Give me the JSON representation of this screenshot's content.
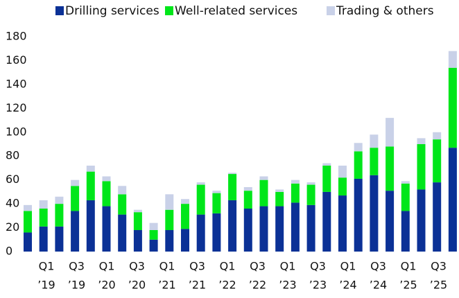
{
  "chart_data": {
    "type": "stacked_bar",
    "categories": [
      [
        "Q1",
        "’19"
      ],
      null,
      [
        "Q3",
        "’19"
      ],
      null,
      [
        "Q1",
        "’20"
      ],
      null,
      [
        "Q3",
        "’20"
      ],
      null,
      [
        "Q1",
        "’21"
      ],
      null,
      [
        "Q3",
        "’21"
      ],
      null,
      [
        "Q1",
        "’22"
      ],
      null,
      [
        "Q3",
        "’22"
      ],
      null,
      [
        "Q1",
        "’23"
      ],
      null,
      [
        "Q3",
        "’23"
      ],
      null,
      [
        "Q1",
        "’24"
      ],
      null,
      [
        "Q3",
        "’24"
      ],
      null,
      [
        "Q1",
        "’25"
      ],
      null,
      [
        "Q3",
        "’25"
      ],
      null
    ],
    "series": [
      {
        "name": "Drilling services",
        "color": "#0b3196",
        "values": [
          16,
          21,
          21,
          34,
          43,
          38,
          31,
          18,
          10,
          18,
          19,
          31,
          32,
          43,
          36,
          38,
          38,
          41,
          39,
          50,
          47,
          61,
          64,
          51,
          34,
          52,
          58,
          87
        ]
      },
      {
        "name": "Well-related services",
        "color": "#00e61a",
        "values": [
          18,
          15,
          19,
          21,
          24,
          21,
          17,
          15,
          8,
          17,
          21,
          25,
          17,
          22,
          15,
          22,
          12,
          16,
          17,
          22,
          15,
          23,
          23,
          37,
          23,
          38,
          36,
          67
        ]
      },
      {
        "name": "Trading & others",
        "color": "#c9d1e8",
        "values": [
          5,
          7,
          6,
          5,
          5,
          4,
          7,
          2,
          6,
          13,
          4,
          2,
          2,
          1,
          3,
          3,
          2,
          3,
          2,
          2,
          10,
          7,
          11,
          24,
          2,
          5,
          6,
          14
        ]
      }
    ],
    "ylim": [
      0,
      180
    ],
    "yticks": [
      0,
      20,
      40,
      60,
      80,
      100,
      120,
      140,
      160,
      180
    ]
  }
}
